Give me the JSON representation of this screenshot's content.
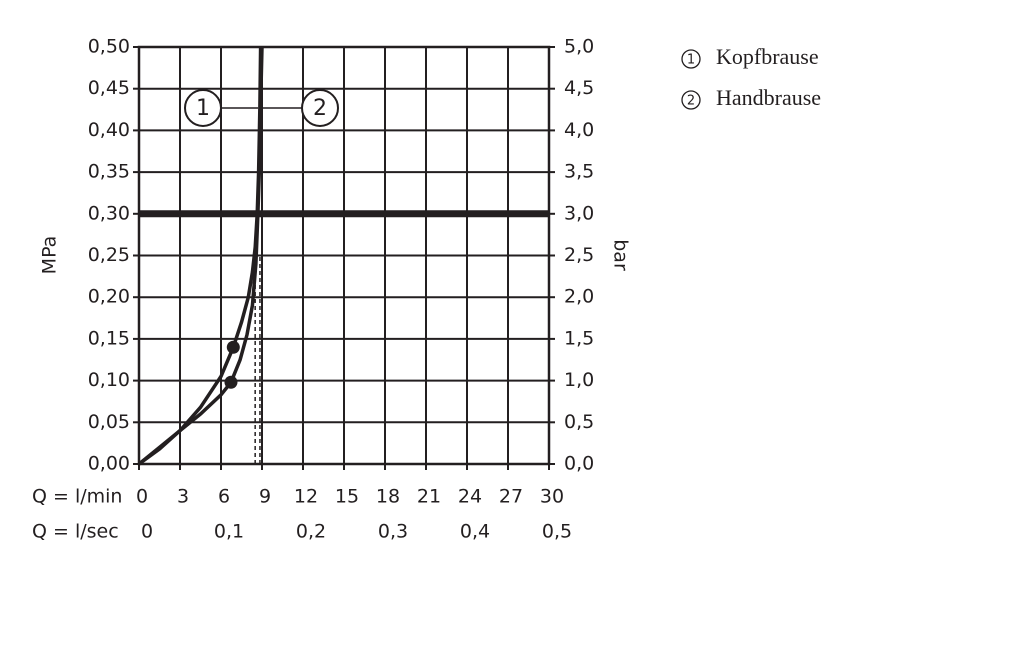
{
  "chart_data": {
    "type": "line",
    "ylabel": "MPa",
    "y2label": "bar",
    "xlabel": "Q = l/min",
    "x2label": "Q = l/sec",
    "xlim": [
      0,
      30
    ],
    "xticks": [
      0,
      3,
      6,
      9,
      12,
      15,
      18,
      21,
      24,
      27,
      30
    ],
    "x2lim": [
      0,
      0.5
    ],
    "x2ticks": [
      0,
      {
        "value": 0.1,
        "label": "0,1"
      },
      {
        "value": 0.2,
        "label": "0,2"
      },
      {
        "value": 0.3,
        "label": "0,3"
      },
      {
        "value": 0.4,
        "label": "0,4"
      },
      {
        "value": 0.5,
        "label": "0,5"
      }
    ],
    "ylim": [
      0,
      0.5
    ],
    "yticks": [
      {
        "value": 0,
        "label": "0,00"
      },
      {
        "value": 0.05,
        "label": "0,05"
      },
      {
        "value": 0.1,
        "label": "0,10"
      },
      {
        "value": 0.15,
        "label": "0,15"
      },
      {
        "value": 0.2,
        "label": "0,20"
      },
      {
        "value": 0.25,
        "label": "0,25"
      },
      {
        "value": 0.3,
        "label": "0,30"
      },
      {
        "value": 0.35,
        "label": "0,35"
      },
      {
        "value": 0.4,
        "label": "0,40"
      },
      {
        "value": 0.45,
        "label": "0,45"
      },
      {
        "value": 0.5,
        "label": "0,50"
      }
    ],
    "y2lim": [
      0,
      5
    ],
    "y2ticks": [
      {
        "value": 0,
        "label": "0,0"
      },
      {
        "value": 0.5,
        "label": "0,5"
      },
      {
        "value": 1,
        "label": "1,0"
      },
      {
        "value": 1.5,
        "label": "1,5"
      },
      {
        "value": 2,
        "label": "2,0"
      },
      {
        "value": 2.5,
        "label": "2,5"
      },
      {
        "value": 3,
        "label": "3,0"
      },
      {
        "value": 3.5,
        "label": "3,5"
      },
      {
        "value": 4,
        "label": "4,0"
      },
      {
        "value": 4.5,
        "label": "4,5"
      },
      {
        "value": 5,
        "label": "5,0"
      }
    ],
    "grid": true,
    "hline": 0.3,
    "reference_x": [
      8.5,
      8.85
    ],
    "series": [
      {
        "name": "Kopfbrause",
        "label": "1",
        "color": "#231f20",
        "x": [
          0,
          1.5,
          3,
          4.5,
          6,
          6.9,
          7.5,
          8,
          8.3,
          8.5,
          8.65,
          8.75,
          8.85,
          8.9
        ],
        "values": [
          0,
          0.018,
          0.04,
          0.068,
          0.105,
          0.14,
          0.17,
          0.2,
          0.23,
          0.26,
          0.3,
          0.35,
          0.43,
          0.5
        ],
        "dot": {
          "x": 6.9,
          "y": 0.14
        }
      },
      {
        "name": "Handbrause",
        "label": "2",
        "color": "#231f20",
        "x": [
          0,
          1.5,
          3,
          4.5,
          6,
          6.73,
          7.4,
          7.9,
          8.3,
          8.55,
          8.7,
          8.8,
          8.9,
          9.0
        ],
        "values": [
          0,
          0.02,
          0.04,
          0.06,
          0.083,
          0.098,
          0.125,
          0.155,
          0.19,
          0.24,
          0.3,
          0.35,
          0.43,
          0.5
        ],
        "dot": {
          "x": 6.73,
          "y": 0.098
        }
      }
    ]
  }
}
